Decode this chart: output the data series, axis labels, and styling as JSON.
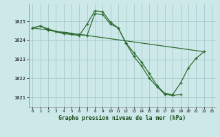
{
  "title": "Graphe pression niveau de la mer (hPa)",
  "background_color": "#cce8e8",
  "grid_color": "#aacece",
  "line_color": "#2d6a2d",
  "xlim": [
    -0.5,
    23.5
  ],
  "ylim": [
    1020.5,
    1025.9
  ],
  "yticks": [
    1021,
    1022,
    1023,
    1024,
    1025
  ],
  "xticks": [
    0,
    1,
    2,
    3,
    4,
    5,
    6,
    7,
    8,
    9,
    10,
    11,
    12,
    13,
    14,
    15,
    16,
    17,
    18,
    19,
    20,
    21,
    22,
    23
  ],
  "line1_x": [
    0,
    1,
    2,
    3,
    4,
    5,
    6,
    7,
    8,
    9,
    10,
    11,
    12,
    13,
    14,
    15,
    16,
    17,
    18,
    19,
    20,
    21,
    22
  ],
  "line1_y": [
    1024.65,
    1024.75,
    1024.6,
    1024.45,
    1024.4,
    1024.35,
    1024.3,
    1024.25,
    1025.4,
    1025.35,
    1024.85,
    1024.65,
    1023.85,
    1023.35,
    1022.85,
    1022.25,
    1021.6,
    1021.2,
    1021.15,
    1021.75,
    1022.55,
    1023.05,
    1023.4
  ],
  "line2_x": [
    0,
    1,
    2,
    3,
    4,
    5,
    6,
    7,
    8,
    9,
    10,
    11,
    12,
    13,
    14,
    15,
    16,
    17,
    18,
    19
  ],
  "line2_y": [
    1024.65,
    1024.75,
    1024.55,
    1024.45,
    1024.35,
    1024.3,
    1024.25,
    1024.85,
    1025.55,
    1025.5,
    1024.95,
    1024.65,
    1023.85,
    1023.15,
    1022.65,
    1022.0,
    1021.55,
    1021.15,
    1021.1,
    1021.15
  ],
  "line3_x": [
    0,
    22
  ],
  "line3_y": [
    1024.65,
    1023.4
  ]
}
